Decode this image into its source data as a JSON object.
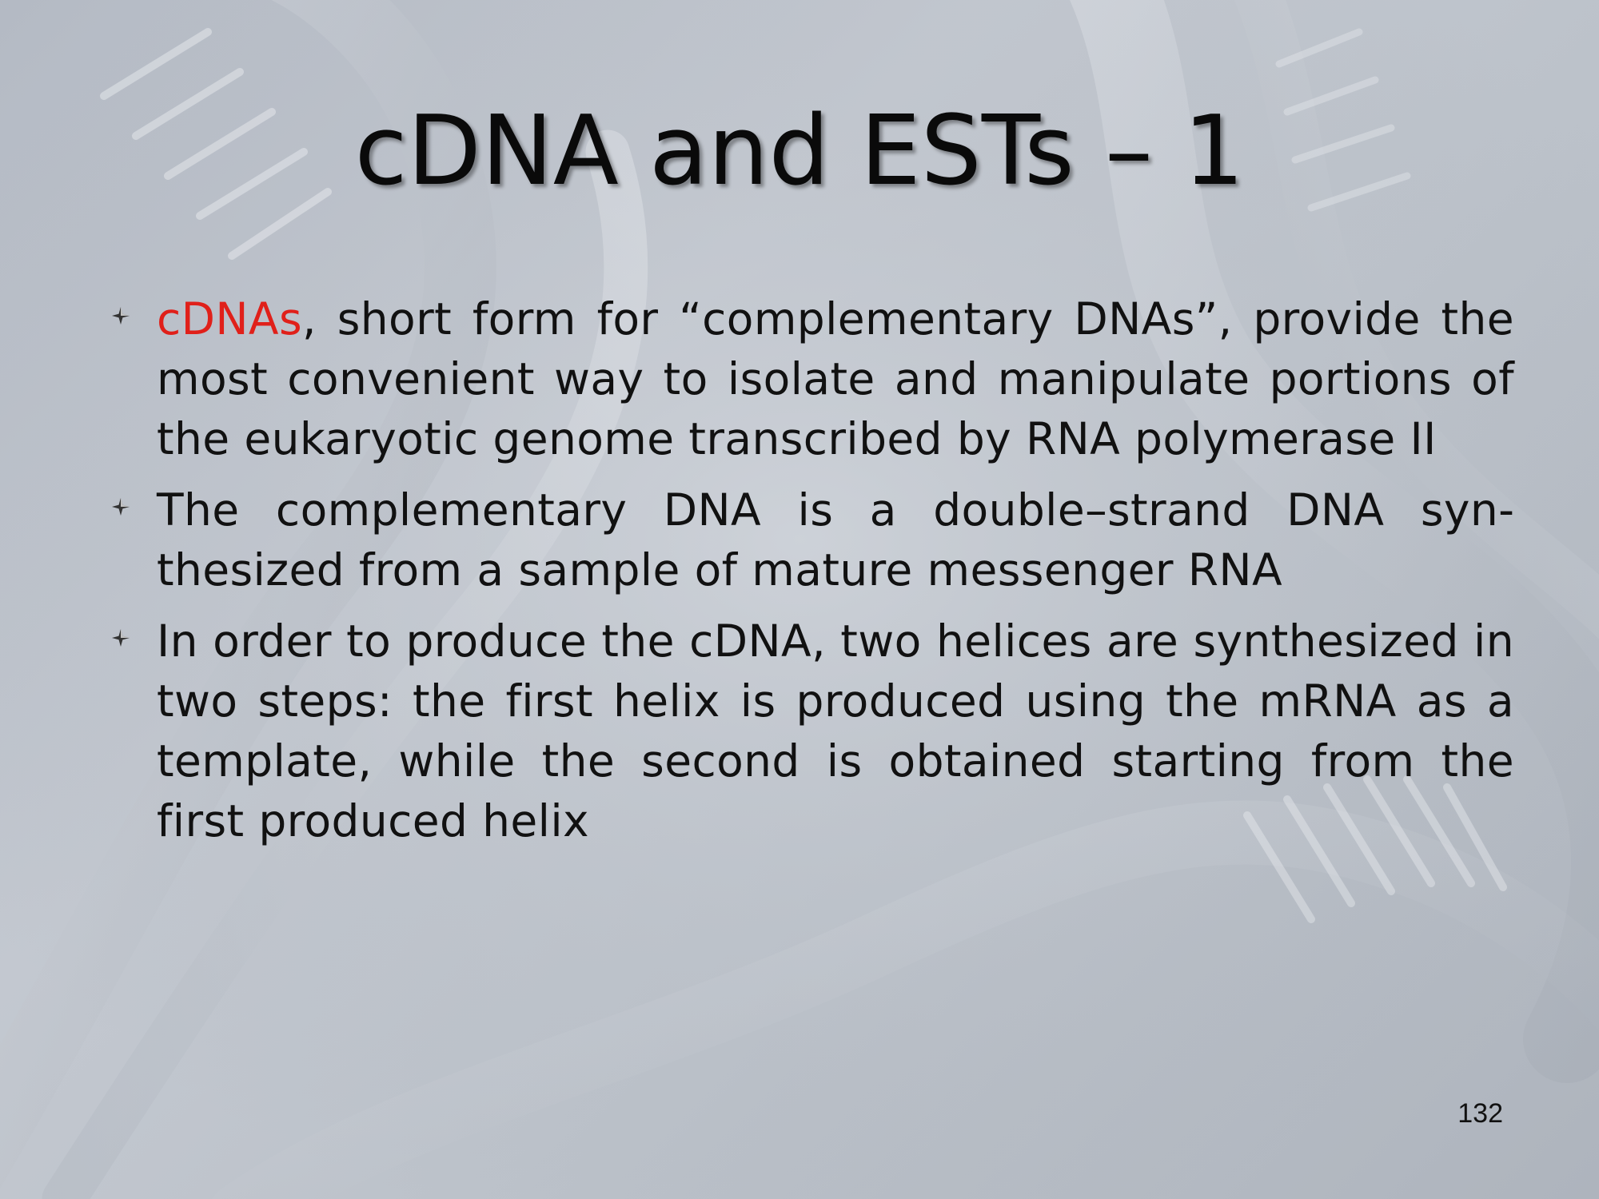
{
  "slide": {
    "title": "cDNA and ESTs – 1",
    "bullets": [
      {
        "highlight": "cDNAs",
        "text": ", short form for “complementary DNAs”, provide the most convenient way to isolate and manipulate portions of the eukaryotic genome transcribed by RNA polymerase II"
      },
      {
        "text": "The complementary DNA is a double–strand DNA syn­thesized from a sample of mature messenger RNA"
      },
      {
        "text": "In order to produce the cDNA, two helices are syn­thesized in two steps: the first helix is produced using the mRNA as a template, while the second is obtained starting from the first produced helix"
      }
    ],
    "page_number": "132"
  },
  "colors": {
    "highlight": "#e0201a",
    "text": "#111111"
  },
  "icons": {
    "bullet": "four-point-star-icon",
    "background": "dna-helix-illustration"
  }
}
